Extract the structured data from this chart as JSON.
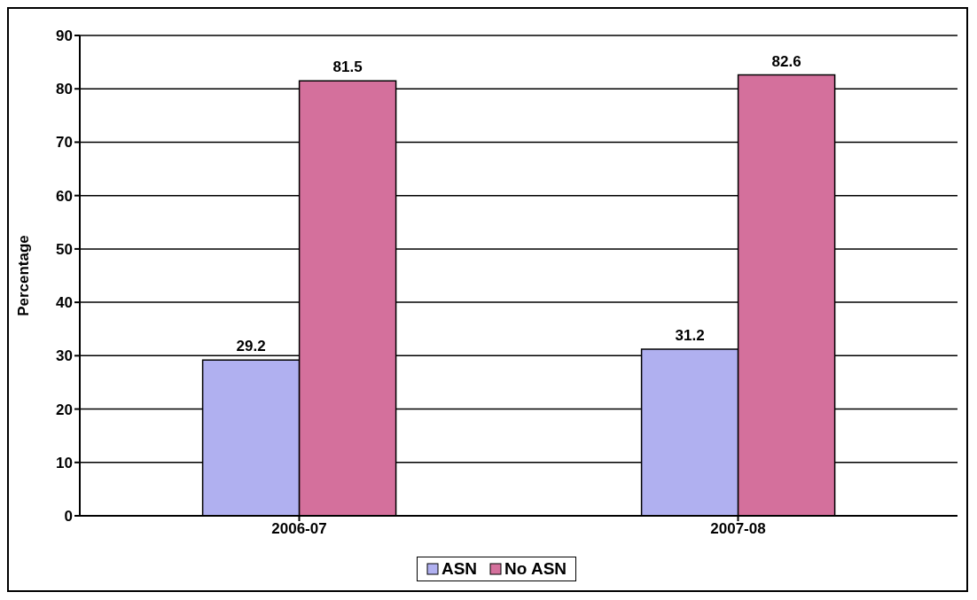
{
  "chart_data": {
    "type": "bar",
    "ylabel": "Percentage",
    "categories": [
      "2006-07",
      "2007-08"
    ],
    "series": [
      {
        "name": "ASN",
        "color": "#b0b0f0",
        "values": [
          29.2,
          31.2
        ]
      },
      {
        "name": "No ASN",
        "color": "#d4709c",
        "values": [
          81.5,
          82.6
        ]
      }
    ],
    "ylim": [
      0,
      90
    ],
    "yticks": [
      0,
      10,
      20,
      30,
      40,
      50,
      60,
      70,
      80,
      90
    ],
    "grid": "y",
    "legend": "bottom",
    "data_labels": true
  }
}
